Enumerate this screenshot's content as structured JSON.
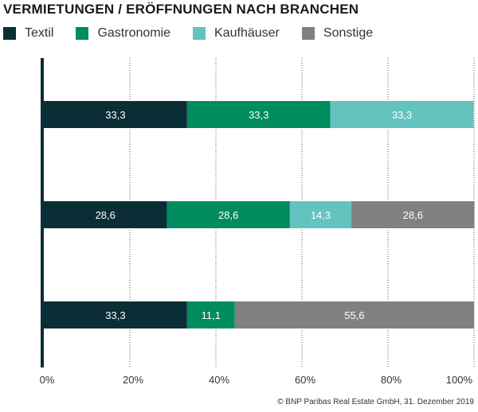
{
  "chart_data": {
    "type": "bar",
    "orientation": "horizontal",
    "stacked": true,
    "title": "VERMIETUNGEN / ERÖFFNUNGEN NACH BRANCHEN",
    "categories": [
      "",
      "",
      ""
    ],
    "series": [
      {
        "name": "Textil",
        "color": "#0b2d36",
        "values": [
          33.3,
          28.6,
          33.3
        ]
      },
      {
        "name": "Gastronomie",
        "color": "#008c5e",
        "values": [
          33.3,
          28.6,
          11.1
        ]
      },
      {
        "name": "Kaufhäuser",
        "color": "#63c3be",
        "values": [
          33.3,
          14.3,
          0
        ]
      },
      {
        "name": "Sonstige",
        "color": "#808080",
        "values": [
          0,
          28.6,
          55.6
        ]
      }
    ],
    "xlim": [
      0,
      100
    ],
    "xticks": [
      "0%",
      "20%",
      "40%",
      "60%",
      "80%",
      "100%"
    ],
    "grid": "vertical dotted",
    "legend": "top-left",
    "data_labels": true
  },
  "footer": {
    "copyright": "© BNP Paribas Real Estate GmbH, 31. Dezember 2019"
  }
}
